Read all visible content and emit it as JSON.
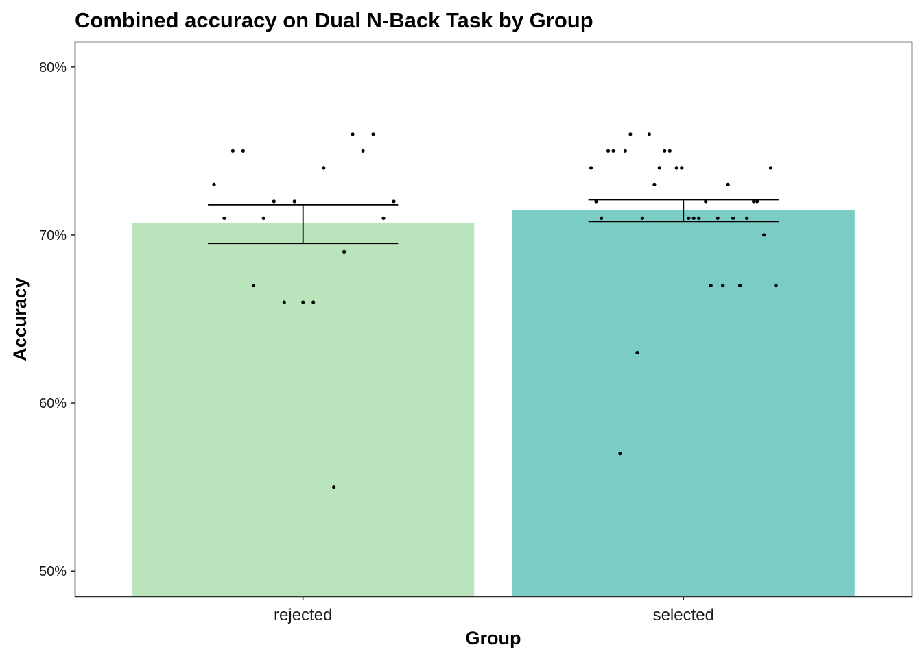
{
  "chart_data": {
    "type": "bar",
    "title": "Combined accuracy on Dual N-Back Task by Group",
    "xlabel": "Group",
    "ylabel": "Accuracy",
    "ylim": [
      48.5,
      81.5
    ],
    "y_ticks": [
      {
        "value": 50,
        "label": "50%"
      },
      {
        "value": 60,
        "label": "60%"
      },
      {
        "value": 70,
        "label": "70%"
      },
      {
        "value": 80,
        "label": "80%"
      }
    ],
    "grid": false,
    "legend": "none",
    "categories": [
      "rejected",
      "selected"
    ],
    "values": [
      70.7,
      71.5
    ],
    "bar_colors": [
      "#bae4bc",
      "#7bccc4"
    ],
    "error_bars": [
      {
        "low": 69.5,
        "high": 71.8
      },
      {
        "low": 70.8,
        "high": 72.1
      }
    ],
    "points": [
      {
        "group": "rejected",
        "jitter": -0.52,
        "y": 73
      },
      {
        "group": "rejected",
        "jitter": -0.46,
        "y": 71
      },
      {
        "group": "rejected",
        "jitter": -0.41,
        "y": 75
      },
      {
        "group": "rejected",
        "jitter": -0.35,
        "y": 75
      },
      {
        "group": "rejected",
        "jitter": -0.29,
        "y": 67
      },
      {
        "group": "rejected",
        "jitter": -0.23,
        "y": 71
      },
      {
        "group": "rejected",
        "jitter": -0.17,
        "y": 72
      },
      {
        "group": "rejected",
        "jitter": -0.11,
        "y": 66
      },
      {
        "group": "rejected",
        "jitter": -0.05,
        "y": 72
      },
      {
        "group": "rejected",
        "jitter": 0.0,
        "y": 66
      },
      {
        "group": "rejected",
        "jitter": 0.06,
        "y": 66
      },
      {
        "group": "rejected",
        "jitter": 0.12,
        "y": 74
      },
      {
        "group": "rejected",
        "jitter": 0.18,
        "y": 55
      },
      {
        "group": "rejected",
        "jitter": 0.24,
        "y": 69
      },
      {
        "group": "rejected",
        "jitter": 0.29,
        "y": 76
      },
      {
        "group": "rejected",
        "jitter": 0.35,
        "y": 75
      },
      {
        "group": "rejected",
        "jitter": 0.41,
        "y": 76
      },
      {
        "group": "rejected",
        "jitter": 0.47,
        "y": 71
      },
      {
        "group": "rejected",
        "jitter": 0.53,
        "y": 72
      },
      {
        "group": "selected",
        "jitter": -0.54,
        "y": 74
      },
      {
        "group": "selected",
        "jitter": -0.51,
        "y": 72
      },
      {
        "group": "selected",
        "jitter": -0.48,
        "y": 71
      },
      {
        "group": "selected",
        "jitter": -0.44,
        "y": 75
      },
      {
        "group": "selected",
        "jitter": -0.41,
        "y": 75
      },
      {
        "group": "selected",
        "jitter": -0.37,
        "y": 57
      },
      {
        "group": "selected",
        "jitter": -0.34,
        "y": 75
      },
      {
        "group": "selected",
        "jitter": -0.31,
        "y": 76
      },
      {
        "group": "selected",
        "jitter": -0.27,
        "y": 63
      },
      {
        "group": "selected",
        "jitter": -0.24,
        "y": 71
      },
      {
        "group": "selected",
        "jitter": -0.2,
        "y": 76
      },
      {
        "group": "selected",
        "jitter": -0.17,
        "y": 73
      },
      {
        "group": "selected",
        "jitter": -0.14,
        "y": 74
      },
      {
        "group": "selected",
        "jitter": -0.11,
        "y": 75
      },
      {
        "group": "selected",
        "jitter": -0.08,
        "y": 75
      },
      {
        "group": "selected",
        "jitter": -0.04,
        "y": 74
      },
      {
        "group": "selected",
        "jitter": -0.01,
        "y": 74
      },
      {
        "group": "selected",
        "jitter": 0.03,
        "y": 71
      },
      {
        "group": "selected",
        "jitter": 0.06,
        "y": 71
      },
      {
        "group": "selected",
        "jitter": 0.09,
        "y": 71
      },
      {
        "group": "selected",
        "jitter": 0.13,
        "y": 72
      },
      {
        "group": "selected",
        "jitter": 0.16,
        "y": 67
      },
      {
        "group": "selected",
        "jitter": 0.2,
        "y": 71
      },
      {
        "group": "selected",
        "jitter": 0.23,
        "y": 67
      },
      {
        "group": "selected",
        "jitter": 0.26,
        "y": 73
      },
      {
        "group": "selected",
        "jitter": 0.29,
        "y": 71
      },
      {
        "group": "selected",
        "jitter": 0.33,
        "y": 67
      },
      {
        "group": "selected",
        "jitter": 0.37,
        "y": 71
      },
      {
        "group": "selected",
        "jitter": 0.41,
        "y": 72
      },
      {
        "group": "selected",
        "jitter": 0.43,
        "y": 72
      },
      {
        "group": "selected",
        "jitter": 0.47,
        "y": 70
      },
      {
        "group": "selected",
        "jitter": 0.51,
        "y": 74
      },
      {
        "group": "selected",
        "jitter": 0.54,
        "y": 67
      }
    ]
  }
}
